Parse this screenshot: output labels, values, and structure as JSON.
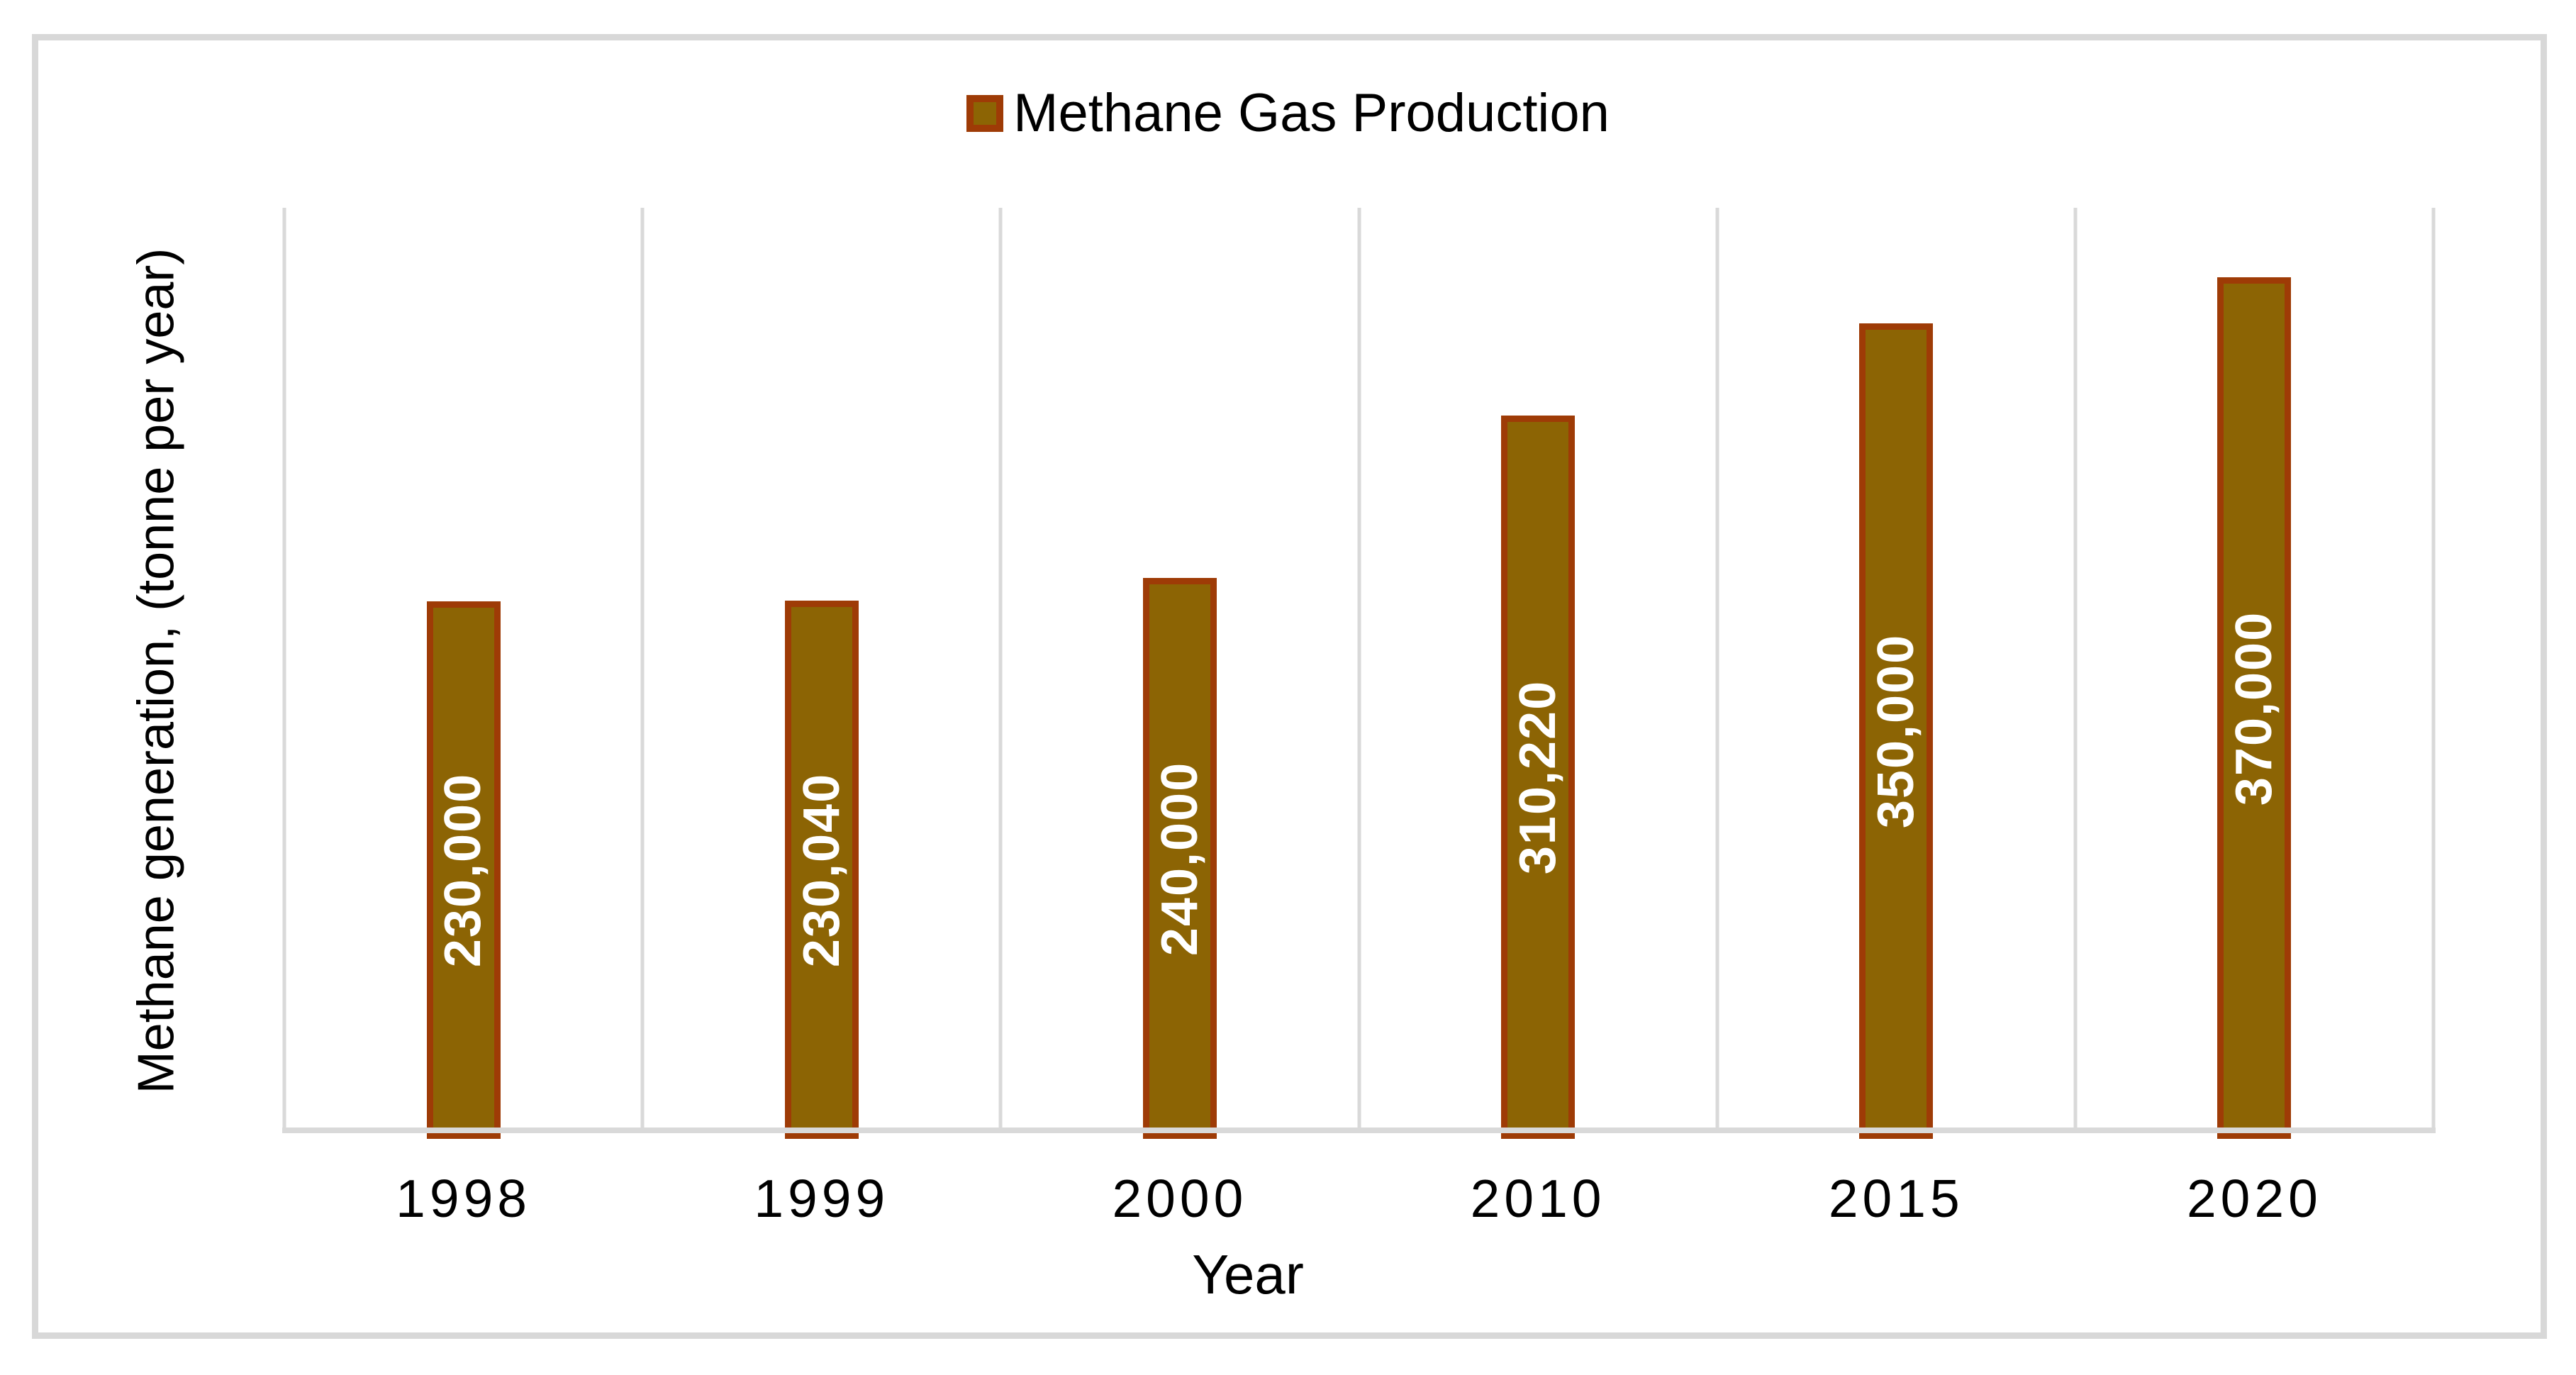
{
  "chart_data": {
    "type": "bar",
    "title": "",
    "legend_label": "Methane Gas Production",
    "legend_position": "top",
    "categories": [
      "1998",
      "1999",
      "2000",
      "2010",
      "2015",
      "2020"
    ],
    "series": [
      {
        "name": "Methane Gas Production",
        "values": [
          230000,
          230040,
          240000,
          310220,
          350000,
          370000
        ]
      }
    ],
    "value_labels": [
      "230,000",
      "230,040",
      "240,000",
      "310,220",
      "350,000",
      "370,000"
    ],
    "xlabel": "Year",
    "ylabel": "Methane generation, (tonne per year)",
    "ylim": [
      0,
      400000
    ],
    "grid": "vertical-category-boundaries",
    "gridline_count": 7,
    "colors": {
      "bar_fill": "#8C6404",
      "bar_border": "#9E3B06",
      "gridline": "#D9D9D9",
      "axis_line": "#D9D9D9",
      "frame_border": "#D8D8D8",
      "value_label": "#FFFFFF",
      "text": "#000000",
      "background": "#FFFFFF"
    }
  }
}
